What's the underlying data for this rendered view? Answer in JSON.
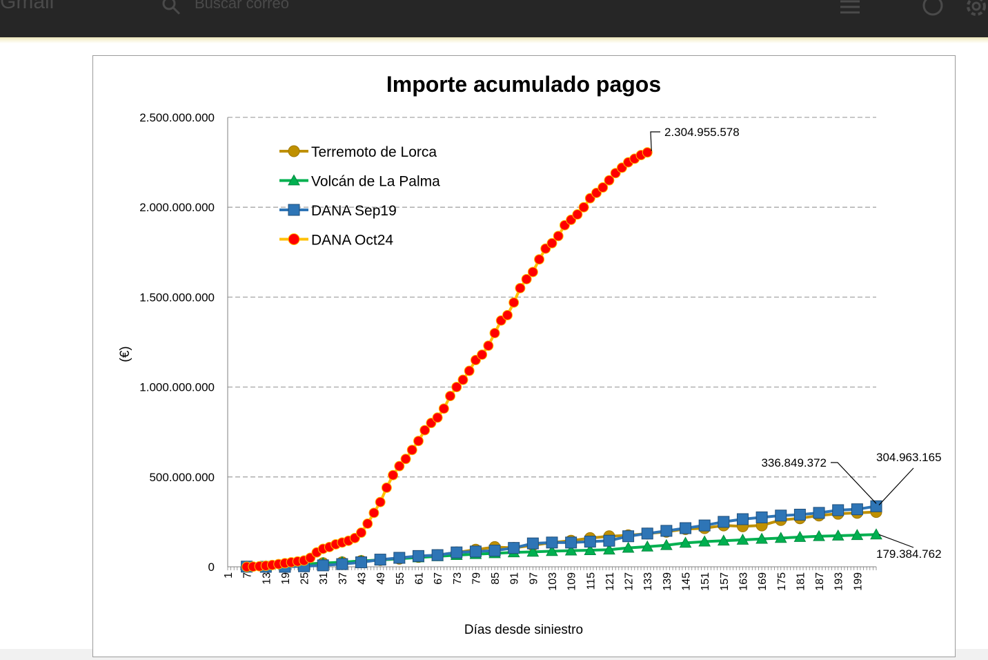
{
  "app": {
    "logo_text": "Gmail",
    "search_placeholder": "Buscar correo"
  },
  "chart_data": {
    "type": "line",
    "title": "Importe acumulado pagos",
    "xlabel": "Días desde siniestro",
    "ylabel": "(€)",
    "ylim": [
      0,
      2500000000
    ],
    "y_ticks": [
      0,
      500000000,
      1000000000,
      1500000000,
      2000000000,
      2500000000
    ],
    "y_tick_labels": [
      "0",
      "500.000.000",
      "1.000.000.000",
      "1.500.000.000",
      "2.000.000.000",
      "2.500.000.000"
    ],
    "x_tick_labels": [
      "1",
      "7",
      "13",
      "19",
      "25",
      "31",
      "37",
      "43",
      "49",
      "55",
      "61",
      "67",
      "73",
      "79",
      "85",
      "91",
      "97",
      "103",
      "109",
      "115",
      "121",
      "127",
      "133",
      "139",
      "145",
      "151",
      "157",
      "163",
      "169",
      "175",
      "181",
      "187",
      "193",
      "199"
    ],
    "xlim": [
      1,
      205
    ],
    "grid": "horizontal-dashed",
    "legend_position": "top-left",
    "series": [
      {
        "name": "Terremoto de Lorca",
        "color": "#bf9000",
        "marker": "circle",
        "x": [
          7,
          13,
          19,
          25,
          31,
          37,
          43,
          49,
          55,
          61,
          67,
          73,
          79,
          85,
          91,
          97,
          103,
          109,
          115,
          121,
          127,
          133,
          139,
          145,
          151,
          157,
          163,
          169,
          175,
          181,
          187,
          193,
          199,
          205
        ],
        "y": [
          0,
          2000000,
          6000000,
          15000000,
          20000000,
          25000000,
          32000000,
          38000000,
          45000000,
          55000000,
          65000000,
          80000000,
          95000000,
          110000000,
          105000000,
          120000000,
          135000000,
          145000000,
          160000000,
          170000000,
          175000000,
          185000000,
          195000000,
          210000000,
          215000000,
          230000000,
          225000000,
          230000000,
          260000000,
          270000000,
          285000000,
          295000000,
          300000000,
          304963165
        ]
      },
      {
        "name": "Volcán de La Palma",
        "color": "#00b050",
        "marker": "triangle",
        "x": [
          7,
          13,
          19,
          25,
          31,
          37,
          43,
          49,
          55,
          61,
          67,
          73,
          79,
          85,
          91,
          97,
          103,
          109,
          115,
          121,
          127,
          133,
          139,
          145,
          151,
          157,
          163,
          169,
          175,
          181,
          187,
          193,
          199,
          205
        ],
        "y": [
          0,
          3000000,
          8000000,
          15000000,
          20000000,
          26000000,
          32000000,
          38000000,
          45000000,
          52000000,
          58000000,
          65000000,
          70000000,
          75000000,
          80000000,
          83000000,
          87000000,
          90000000,
          92000000,
          95000000,
          105000000,
          112000000,
          120000000,
          133000000,
          140000000,
          145000000,
          150000000,
          155000000,
          160000000,
          165000000,
          170000000,
          173000000,
          176000000,
          179384762
        ]
      },
      {
        "name": "DANA Sep19",
        "color": "#2e75b6",
        "marker": "square",
        "x": [
          7,
          13,
          19,
          25,
          31,
          37,
          43,
          49,
          55,
          61,
          67,
          73,
          79,
          85,
          91,
          97,
          103,
          109,
          115,
          121,
          127,
          133,
          139,
          145,
          151,
          157,
          163,
          169,
          175,
          181,
          187,
          193,
          199,
          205
        ],
        "y": [
          1000000,
          0,
          0,
          3000000,
          8000000,
          15000000,
          25000000,
          40000000,
          50000000,
          60000000,
          65000000,
          80000000,
          85000000,
          90000000,
          105000000,
          130000000,
          135000000,
          135000000,
          140000000,
          145000000,
          170000000,
          185000000,
          200000000,
          215000000,
          230000000,
          250000000,
          265000000,
          275000000,
          285000000,
          290000000,
          300000000,
          315000000,
          320000000,
          336849372
        ]
      },
      {
        "name": "DANA Oct24",
        "color": "#ff0000",
        "line_color": "#ffc000",
        "marker": "circle",
        "x": [
          7,
          9,
          11,
          13,
          15,
          17,
          19,
          21,
          23,
          25,
          27,
          29,
          31,
          33,
          35,
          37,
          39,
          41,
          43,
          45,
          47,
          49,
          51,
          53,
          55,
          57,
          59,
          61,
          63,
          65,
          67,
          69,
          71,
          73,
          75,
          77,
          79,
          81,
          83,
          85,
          87,
          89,
          91,
          93,
          95,
          97,
          99,
          101,
          103,
          105,
          107,
          109,
          111,
          113,
          115,
          117,
          119,
          121,
          123,
          125,
          127,
          129,
          131,
          133
        ],
        "y": [
          0,
          1000000,
          3000000,
          6000000,
          10000000,
          15000000,
          20000000,
          25000000,
          30000000,
          35000000,
          50000000,
          80000000,
          100000000,
          110000000,
          125000000,
          135000000,
          145000000,
          160000000,
          190000000,
          240000000,
          300000000,
          360000000,
          440000000,
          510000000,
          560000000,
          600000000,
          650000000,
          700000000,
          760000000,
          800000000,
          830000000,
          880000000,
          950000000,
          1000000000,
          1040000000,
          1090000000,
          1150000000,
          1180000000,
          1230000000,
          1300000000,
          1370000000,
          1400000000,
          1470000000,
          1550000000,
          1600000000,
          1640000000,
          1710000000,
          1770000000,
          1800000000,
          1840000000,
          1900000000,
          1930000000,
          1960000000,
          2000000000,
          2050000000,
          2080000000,
          2110000000,
          2150000000,
          2190000000,
          2220000000,
          2250000000,
          2270000000,
          2290000000,
          2304955578
        ]
      }
    ],
    "annotations": [
      {
        "text": "2.304.955.578",
        "series": "DANA Oct24"
      },
      {
        "text": "336.849.372",
        "series": "DANA Sep19"
      },
      {
        "text": "304.963.165",
        "series": "Terremoto de Lorca"
      },
      {
        "text": "179.384.762",
        "series": "Volcán de La Palma"
      }
    ]
  }
}
